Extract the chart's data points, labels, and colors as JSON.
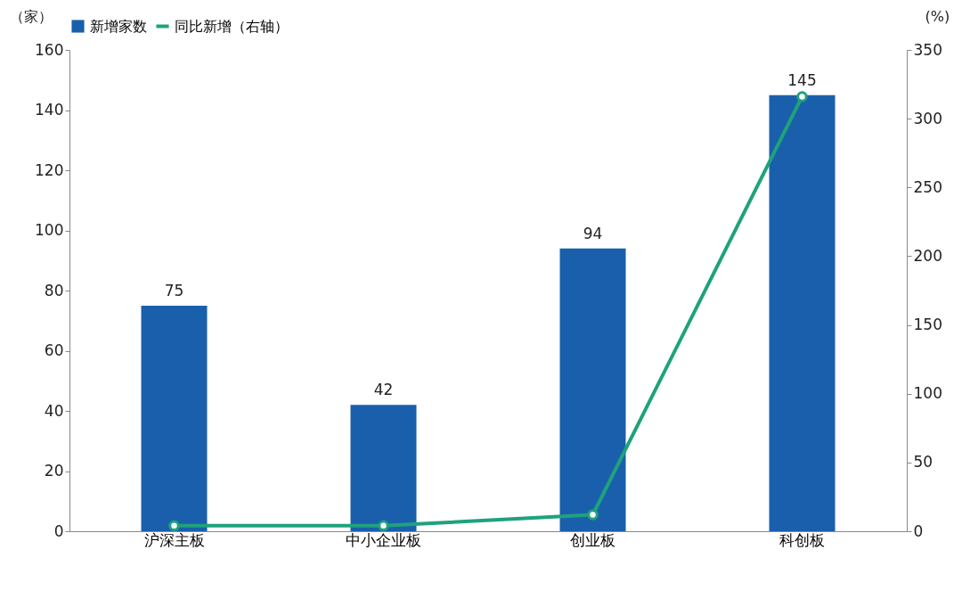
{
  "chart_data": {
    "type": "bar",
    "categories": [
      "沪深主板",
      "中小企业板",
      "创业板",
      "科创板"
    ],
    "ylabel": "（家）",
    "y2label": "(%)",
    "ylim": [
      0,
      160
    ],
    "yticks": [
      0,
      20,
      40,
      60,
      80,
      100,
      120,
      140,
      160
    ],
    "y2lim": [
      0,
      350
    ],
    "y2ticks": [
      0,
      50,
      100,
      150,
      200,
      250,
      300,
      350
    ],
    "series": [
      {
        "name": "新增家数",
        "color": "#1a5fac",
        "values": [
          75,
          42,
          94,
          145
        ],
        "data_labels": true
      },
      {
        "name": "同比新增（右轴）",
        "type": "line",
        "axis": "y2",
        "color": "#1ea27c",
        "marker": "circle",
        "values": [
          4,
          4,
          12,
          316
        ]
      }
    ],
    "legend": "top",
    "grid": false
  }
}
